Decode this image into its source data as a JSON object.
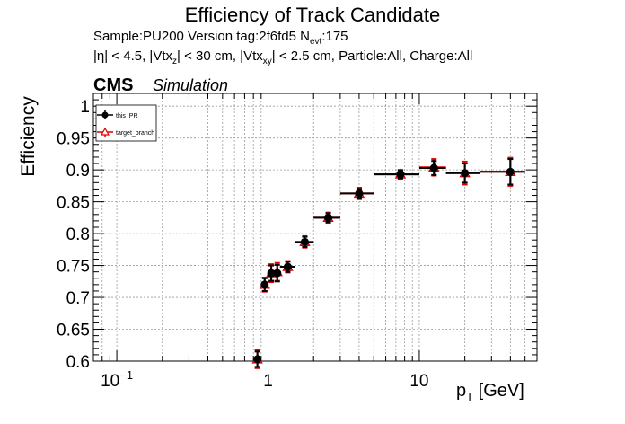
{
  "header": {
    "title": "Efficiency of Track Candidate",
    "info_line1": "Sample:PU200   Version tag:2f6fd5  N",
    "info_line1_sub": "evt",
    "info_line1_end": ":175",
    "info_line2_a": "|η| < 4.5, |Vtx",
    "info_line2_sub1": "z",
    "info_line2_b": "| < 30 cm, |Vtx",
    "info_line2_sub2": "xy",
    "info_line2_c": "| < 2.5 cm, Particle:All, Charge:All",
    "cms_label": "CMS",
    "sim_label": "Simulation"
  },
  "axes": {
    "ylabel": "Efficiency",
    "xlabel_main": "p",
    "xlabel_sub": "T",
    "xlabel_unit": " [GeV]"
  },
  "colors": {
    "series_this_pr": "#000000",
    "series_target": "#e00000",
    "grid": "#9a9a9a"
  },
  "chart_data": {
    "type": "scatter",
    "title": "Efficiency of Track Candidate",
    "xlabel": "p_T [GeV]",
    "ylabel": "Efficiency",
    "xscale": "log",
    "xlim": [
      0.07,
      60
    ],
    "ylim": [
      0.6,
      1.02
    ],
    "x_ticks": [
      0.1,
      1,
      10
    ],
    "x_tick_labels": [
      "10^−1",
      "1",
      "10"
    ],
    "y_ticks": [
      0.6,
      0.65,
      0.7,
      0.75,
      0.8,
      0.85,
      0.9,
      0.95,
      1
    ],
    "y_tick_labels": [
      "0.6",
      "0.65",
      "0.7",
      "0.75",
      "0.8",
      "0.85",
      "0.9",
      "0.95",
      "1"
    ],
    "grid": true,
    "legend_position": "top-left",
    "series": [
      {
        "name": "this_PR",
        "marker": "circle",
        "points": [
          {
            "x": 0.85,
            "xlo": 0.8,
            "xhi": 0.9,
            "y": 0.603,
            "yerr": 0.012
          },
          {
            "x": 0.95,
            "xlo": 0.9,
            "xhi": 1.0,
            "y": 0.72,
            "yerr": 0.01
          },
          {
            "x": 1.05,
            "xlo": 1.0,
            "xhi": 1.1,
            "y": 0.738,
            "yerr": 0.012
          },
          {
            "x": 1.15,
            "xlo": 1.1,
            "xhi": 1.2,
            "y": 0.738,
            "yerr": 0.013
          },
          {
            "x": 1.35,
            "xlo": 1.2,
            "xhi": 1.5,
            "y": 0.748,
            "yerr": 0.008
          },
          {
            "x": 1.75,
            "xlo": 1.5,
            "xhi": 2.0,
            "y": 0.787,
            "yerr": 0.008
          },
          {
            "x": 2.5,
            "xlo": 2.0,
            "xhi": 3.0,
            "y": 0.825,
            "yerr": 0.007
          },
          {
            "x": 4.0,
            "xlo": 3.0,
            "xhi": 5.0,
            "y": 0.863,
            "yerr": 0.007
          },
          {
            "x": 7.5,
            "xlo": 5.0,
            "xhi": 10.0,
            "y": 0.893,
            "yerr": 0.006
          },
          {
            "x": 12.5,
            "xlo": 10.0,
            "xhi": 15.0,
            "y": 0.903,
            "yerr": 0.011
          },
          {
            "x": 20.0,
            "xlo": 15.0,
            "xhi": 25.0,
            "y": 0.895,
            "yerr": 0.015
          },
          {
            "x": 40.0,
            "xlo": 25.0,
            "xhi": 50.0,
            "y": 0.897,
            "yerr": 0.02
          }
        ]
      },
      {
        "name": "target_branch",
        "marker": "triangle-open",
        "points": [
          {
            "x": 0.85,
            "xlo": 0.8,
            "xhi": 0.9,
            "y": 0.603,
            "yerr": 0.014
          },
          {
            "x": 0.95,
            "xlo": 0.9,
            "xhi": 1.0,
            "y": 0.72,
            "yerr": 0.011
          },
          {
            "x": 1.05,
            "xlo": 1.0,
            "xhi": 1.1,
            "y": 0.738,
            "yerr": 0.014
          },
          {
            "x": 1.15,
            "xlo": 1.1,
            "xhi": 1.2,
            "y": 0.74,
            "yerr": 0.014
          },
          {
            "x": 1.35,
            "xlo": 1.2,
            "xhi": 1.5,
            "y": 0.748,
            "yerr": 0.009
          },
          {
            "x": 1.75,
            "xlo": 1.5,
            "xhi": 2.0,
            "y": 0.787,
            "yerr": 0.009
          },
          {
            "x": 2.5,
            "xlo": 2.0,
            "xhi": 3.0,
            "y": 0.825,
            "yerr": 0.008
          },
          {
            "x": 4.0,
            "xlo": 3.0,
            "xhi": 5.0,
            "y": 0.863,
            "yerr": 0.009
          },
          {
            "x": 7.5,
            "xlo": 5.0,
            "xhi": 10.0,
            "y": 0.893,
            "yerr": 0.007
          },
          {
            "x": 12.5,
            "xlo": 10.0,
            "xhi": 15.0,
            "y": 0.904,
            "yerr": 0.013
          },
          {
            "x": 20.0,
            "xlo": 15.0,
            "xhi": 25.0,
            "y": 0.895,
            "yerr": 0.018
          },
          {
            "x": 40.0,
            "xlo": 25.0,
            "xhi": 50.0,
            "y": 0.897,
            "yerr": 0.022
          }
        ]
      }
    ]
  }
}
